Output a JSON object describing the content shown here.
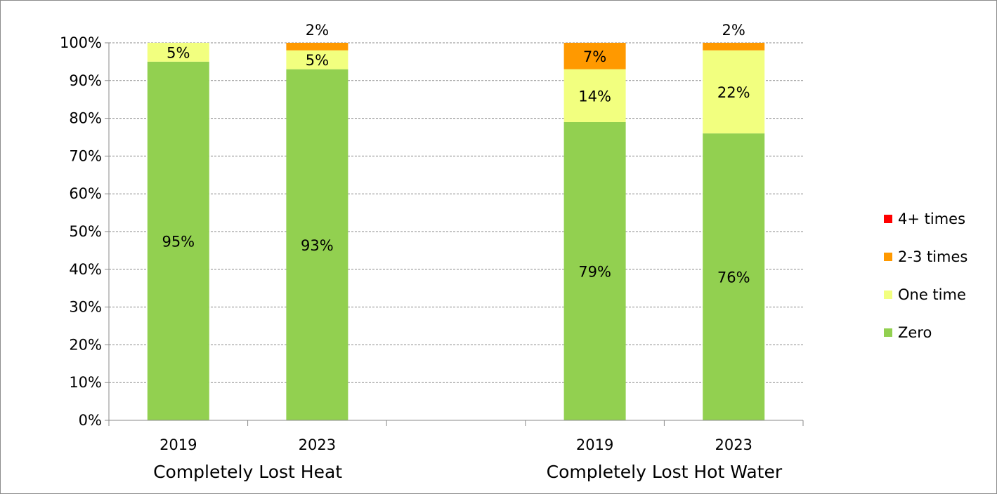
{
  "chart_data": {
    "type": "bar",
    "stacked": true,
    "groups": [
      "Completely Lost Heat",
      "Completely Lost Hot Water"
    ],
    "categories": [
      "2019",
      "2023",
      "2019",
      "2023"
    ],
    "category_groups": [
      0,
      0,
      1,
      1
    ],
    "series": [
      {
        "name": "Zero",
        "color": "#92d050",
        "values": [
          95,
          93,
          79,
          76
        ]
      },
      {
        "name": "One time",
        "color": "#f2ff7f",
        "values": [
          5,
          5,
          14,
          22
        ]
      },
      {
        "name": "2-3 times",
        "color": "#ff9900",
        "values": [
          0,
          2,
          7,
          2
        ]
      },
      {
        "name": "4+ times",
        "color": "#ff0000",
        "values": [
          0,
          0,
          0,
          0
        ]
      }
    ],
    "data_labels": [
      {
        "series": 0,
        "bar": 0,
        "text": "95%"
      },
      {
        "series": 0,
        "bar": 1,
        "text": "93%"
      },
      {
        "series": 0,
        "bar": 2,
        "text": "79%"
      },
      {
        "series": 0,
        "bar": 3,
        "text": "76%"
      },
      {
        "series": 1,
        "bar": 0,
        "text": "5%"
      },
      {
        "series": 1,
        "bar": 1,
        "text": "5%"
      },
      {
        "series": 1,
        "bar": 2,
        "text": "14%"
      },
      {
        "series": 1,
        "bar": 3,
        "text": "22%"
      },
      {
        "series": 2,
        "bar": 1,
        "text": "2%",
        "above": true
      },
      {
        "series": 2,
        "bar": 2,
        "text": "7%"
      },
      {
        "series": 2,
        "bar": 3,
        "text": "2%",
        "above": true
      }
    ],
    "y_ticks": [
      "0%",
      "10%",
      "20%",
      "30%",
      "40%",
      "50%",
      "60%",
      "70%",
      "80%",
      "90%",
      "100%"
    ],
    "ylim": [
      0,
      100
    ],
    "grid": true,
    "legend_position": "right",
    "legend_order": [
      "4+ times",
      "2-3 times",
      "One time",
      "Zero"
    ],
    "title": "",
    "xlabel": "",
    "ylabel": ""
  }
}
